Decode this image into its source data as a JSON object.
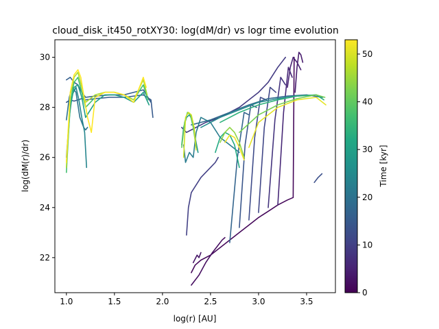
{
  "chart_data": {
    "type": "line",
    "title": "cloud_disk_it450_rotXY30: log(dM/dr) vs logr time evolution",
    "xlabel": "log(r) [AU]",
    "ylabel": "log(dM(r)/dr)",
    "xlim": [
      0.88,
      3.8
    ],
    "ylim": [
      20.6,
      30.7
    ],
    "xticks": [
      1.0,
      1.5,
      2.0,
      2.5,
      3.0,
      3.5
    ],
    "xtick_labels": [
      "1.0",
      "1.5",
      "2.0",
      "2.5",
      "3.0",
      "3.5"
    ],
    "yticks": [
      22,
      24,
      26,
      28,
      30
    ],
    "ytick_labels": [
      "22",
      "24",
      "26",
      "28",
      "30"
    ],
    "grid": false,
    "legend": "none",
    "colormap": "viridis",
    "colorbar": {
      "label": "Time [kyr]",
      "range": [
        0,
        53
      ],
      "ticks": [
        0,
        10,
        20,
        30,
        40,
        50
      ],
      "tick_labels": [
        "0",
        "10",
        "20",
        "30",
        "40",
        "50"
      ]
    },
    "series": [
      {
        "time": 1,
        "x": [
          2.3,
          2.34,
          2.4,
          2.5,
          2.6,
          2.7,
          2.8,
          2.9,
          3.0,
          3.1,
          3.2,
          3.3,
          3.36,
          3.37
        ],
        "y": [
          21.4,
          21.7,
          21.9,
          22.1,
          22.4,
          22.7,
          23.0,
          23.3,
          23.6,
          23.85,
          24.1,
          24.3,
          24.4,
          30.0
        ]
      },
      {
        "time": 2,
        "x": [
          2.3,
          2.38,
          2.45,
          2.52,
          2.58,
          2.62,
          2.65
        ],
        "y": [
          20.9,
          21.3,
          21.8,
          22.2,
          22.5,
          22.7,
          22.8
        ]
      },
      {
        "time": 3,
        "x": [
          2.32,
          2.34,
          2.36,
          2.38,
          2.4
        ],
        "y": [
          21.8,
          21.95,
          22.1,
          22.0,
          22.2
        ]
      },
      {
        "time": 4,
        "x": [
          3.38,
          3.4,
          3.42,
          3.44,
          3.46
        ],
        "y": [
          28.6,
          29.6,
          30.2,
          30.1,
          29.8
        ]
      },
      {
        "time": 5,
        "x": [
          3.3,
          3.33,
          3.36,
          3.4,
          3.44
        ],
        "y": [
          28.8,
          29.6,
          30.0,
          29.8,
          29.5
        ]
      },
      {
        "time": 6,
        "x": [
          3.2,
          3.26,
          3.31,
          3.35
        ],
        "y": [
          24.1,
          27.8,
          29.6,
          29.2
        ]
      },
      {
        "time": 8,
        "x": [
          3.1,
          3.17,
          3.23,
          3.28
        ],
        "y": [
          24.0,
          27.5,
          29.2,
          28.9
        ]
      },
      {
        "time": 9,
        "x": [
          2.2,
          2.25,
          2.3,
          2.45,
          2.6,
          2.8,
          3.0,
          3.1,
          3.2,
          3.28
        ],
        "y": [
          27.2,
          27.0,
          27.1,
          27.4,
          27.6,
          28.0,
          28.6,
          29.0,
          29.6,
          30.0
        ]
      },
      {
        "time": 10,
        "x": [
          2.25,
          2.27,
          2.3,
          2.4,
          2.5,
          2.55,
          2.58
        ],
        "y": [
          22.9,
          24.0,
          24.6,
          25.2,
          25.6,
          25.8,
          26.0
        ]
      },
      {
        "time": 11,
        "x": [
          3.0,
          3.06,
          3.12,
          3.18
        ],
        "y": [
          23.8,
          27.2,
          28.8,
          28.6
        ]
      },
      {
        "time": 12,
        "x": [
          2.9,
          2.96,
          3.02,
          3.08
        ],
        "y": [
          23.5,
          26.8,
          28.4,
          28.3
        ]
      },
      {
        "time": 13,
        "x": [
          3.58,
          3.62,
          3.66
        ],
        "y": [
          25.0,
          25.2,
          25.35
        ]
      },
      {
        "time": 14,
        "x": [
          2.8,
          2.86,
          2.92,
          2.98
        ],
        "y": [
          23.2,
          26.5,
          28.1,
          28.0
        ]
      },
      {
        "time": 15,
        "x": [
          1.0,
          1.04,
          1.08,
          1.12,
          1.16,
          1.2,
          1.3,
          1.45,
          1.6,
          1.8,
          1.88,
          1.9
        ],
        "y": [
          28.2,
          28.3,
          28.25,
          28.3,
          28.35,
          28.3,
          28.35,
          28.4,
          28.4,
          28.5,
          28.3,
          27.6
        ]
      },
      {
        "time": 16,
        "x": [
          1.0,
          1.04,
          1.08,
          1.12,
          1.16,
          1.2,
          1.3,
          1.45,
          1.6,
          1.8,
          1.88
        ],
        "y": [
          29.1,
          29.2,
          29.0,
          28.9,
          28.6,
          28.4,
          28.45,
          28.5,
          28.5,
          28.7,
          28.2
        ]
      },
      {
        "time": 17,
        "x": [
          2.7,
          2.78,
          2.85,
          2.9
        ],
        "y": [
          22.6,
          26.0,
          27.8,
          27.7
        ]
      },
      {
        "time": 18,
        "x": [
          2.3,
          2.5,
          2.7,
          2.9,
          3.1,
          3.3,
          3.5,
          3.66
        ],
        "y": [
          27.3,
          27.5,
          27.8,
          28.1,
          28.35,
          28.45,
          28.5,
          28.4
        ]
      },
      {
        "time": 20,
        "x": [
          1.0,
          1.03,
          1.06,
          1.1,
          1.14,
          1.18,
          1.2,
          1.22
        ],
        "y": [
          27.5,
          28.4,
          28.8,
          28.6,
          27.6,
          27.2,
          27.1,
          27.2
        ]
      },
      {
        "time": 22,
        "x": [
          2.22,
          2.24,
          2.28,
          2.32,
          2.35,
          2.4,
          2.5,
          2.6,
          2.7,
          2.8
        ],
        "y": [
          26.5,
          25.8,
          26.2,
          26.0,
          27.0,
          27.6,
          27.4,
          26.8,
          26.5,
          26.2
        ]
      },
      {
        "time": 24,
        "x": [
          1.0,
          1.03,
          1.06,
          1.1,
          1.13,
          1.16,
          1.19,
          1.21
        ],
        "y": [
          26.0,
          27.6,
          28.5,
          28.8,
          28.3,
          27.6,
          27.0,
          25.6
        ]
      },
      {
        "time": 25,
        "x": [
          2.4,
          2.6,
          2.8,
          3.0,
          3.2,
          3.4,
          3.6,
          3.67
        ],
        "y": [
          27.2,
          27.6,
          27.9,
          28.2,
          28.35,
          28.45,
          28.5,
          28.4
        ]
      },
      {
        "time": 28,
        "x": [
          2.2,
          2.22,
          2.25,
          2.28,
          2.31,
          2.34,
          2.37
        ],
        "y": [
          26.5,
          27.2,
          27.6,
          27.7,
          27.5,
          26.8,
          26.2
        ]
      },
      {
        "time": 30,
        "x": [
          1.0,
          1.04,
          1.08,
          1.12,
          1.16,
          1.2,
          1.3,
          1.4,
          1.5,
          1.6,
          1.7,
          1.8,
          1.86
        ],
        "y": [
          25.8,
          28.0,
          28.8,
          28.9,
          28.4,
          27.6,
          28.2,
          28.5,
          28.5,
          28.4,
          28.2,
          28.6,
          28.1
        ]
      },
      {
        "time": 32,
        "x": [
          2.55,
          2.6,
          2.65,
          2.7,
          2.75,
          2.8
        ],
        "y": [
          26.2,
          26.8,
          27.0,
          26.9,
          26.5,
          25.6
        ]
      },
      {
        "time": 34,
        "x": [
          2.6,
          2.8,
          3.0,
          3.2,
          3.4,
          3.6,
          3.68
        ],
        "y": [
          27.4,
          27.8,
          28.1,
          28.3,
          28.45,
          28.5,
          28.3
        ]
      },
      {
        "time": 37,
        "x": [
          1.0,
          1.04,
          1.08,
          1.12,
          1.16,
          1.2,
          1.3,
          1.4,
          1.5,
          1.6,
          1.7,
          1.8,
          1.85
        ],
        "y": [
          25.4,
          28.2,
          29.0,
          29.2,
          28.6,
          28.0,
          28.4,
          28.6,
          28.6,
          28.5,
          28.3,
          28.9,
          28.3
        ]
      },
      {
        "time": 40,
        "x": [
          2.2,
          2.23,
          2.26,
          2.29,
          2.32,
          2.35
        ],
        "y": [
          26.4,
          27.4,
          27.8,
          27.7,
          27.2,
          26.4
        ]
      },
      {
        "time": 42,
        "x": [
          2.8,
          3.0,
          3.2,
          3.4,
          3.6,
          3.69
        ],
        "y": [
          27.0,
          27.7,
          28.1,
          28.35,
          28.5,
          28.4
        ]
      },
      {
        "time": 44,
        "x": [
          2.6,
          2.65,
          2.7,
          2.75,
          2.8,
          2.85
        ],
        "y": [
          26.6,
          27.0,
          27.2,
          27.0,
          26.6,
          26.0
        ]
      },
      {
        "time": 46,
        "x": [
          1.0,
          1.04,
          1.08,
          1.12,
          1.16,
          1.2,
          1.3,
          1.4,
          1.5,
          1.6,
          1.7,
          1.8,
          1.84
        ],
        "y": [
          25.6,
          28.5,
          29.2,
          29.4,
          28.8,
          28.2,
          28.5,
          28.6,
          28.6,
          28.5,
          28.3,
          29.1,
          28.5
        ]
      },
      {
        "time": 49,
        "x": [
          2.22,
          2.24,
          2.27,
          2.3,
          2.33,
          2.35
        ],
        "y": [
          26.0,
          27.6,
          27.8,
          27.7,
          27.2,
          26.3
        ]
      },
      {
        "time": 51,
        "x": [
          2.9,
          3.0,
          3.2,
          3.4,
          3.6,
          3.7
        ],
        "y": [
          26.4,
          27.4,
          28.0,
          28.3,
          28.4,
          28.1
        ]
      },
      {
        "time": 52,
        "x": [
          2.65,
          2.7,
          2.75,
          2.8,
          2.85
        ],
        "y": [
          26.6,
          26.9,
          26.8,
          26.4,
          25.9
        ]
      },
      {
        "time": 53,
        "x": [
          1.0,
          1.04,
          1.08,
          1.12,
          1.15,
          1.18,
          1.22,
          1.26,
          1.3,
          1.4,
          1.5,
          1.6,
          1.7,
          1.8,
          1.83
        ],
        "y": [
          25.8,
          28.6,
          29.3,
          29.5,
          29.2,
          28.5,
          27.6,
          27.0,
          28.4,
          28.6,
          28.6,
          28.5,
          28.2,
          29.2,
          28.8
        ]
      }
    ]
  }
}
